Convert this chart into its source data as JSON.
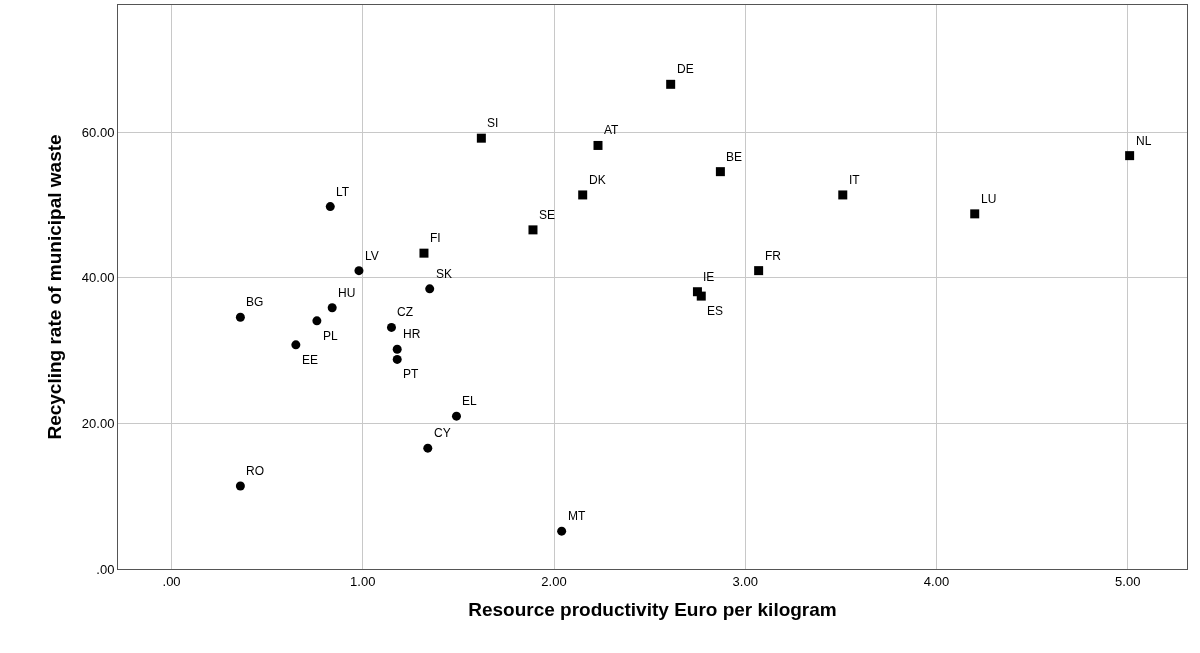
{
  "chart_data": {
    "type": "scatter",
    "xlabel": "Resource productivity Euro per kilogram",
    "ylabel": "Recycling rate of municipal waste",
    "xlim": [
      -0.28,
      5.31
    ],
    "ylim": [
      0,
      77.5
    ],
    "xticks": [
      {
        "value": 0,
        "label": ".00"
      },
      {
        "value": 1,
        "label": "1.00"
      },
      {
        "value": 2,
        "label": "2.00"
      },
      {
        "value": 3,
        "label": "3.00"
      },
      {
        "value": 4,
        "label": "4.00"
      },
      {
        "value": 5,
        "label": "5.00"
      }
    ],
    "yticks": [
      {
        "value": 0,
        "label": ".00"
      },
      {
        "value": 20,
        "label": "20.00"
      },
      {
        "value": 40,
        "label": "40.00"
      },
      {
        "value": 60,
        "label": "60.00"
      }
    ],
    "grid": true,
    "series": [
      {
        "color": "#000000",
        "marker": "square",
        "x": [
          2.61,
          1.62,
          2.23,
          2.87,
          5.01,
          2.15,
          3.51,
          4.2,
          1.89,
          1.32,
          3.07,
          2.75,
          2.77
        ],
        "values": [
          66.6,
          59.2,
          58.2,
          54.6,
          56.8,
          51.4,
          51.4,
          48.8,
          46.6,
          43.4,
          41.0,
          38.1,
          37.5
        ]
      },
      {
        "color": "#000000",
        "marker": "circle",
        "x": [
          0.83,
          0.98,
          1.35,
          0.84,
          0.36,
          0.76,
          1.15,
          0.65,
          1.18,
          1.18,
          1.49,
          1.34,
          0.36,
          2.04
        ],
        "values": [
          49.8,
          41.0,
          38.5,
          35.9,
          34.6,
          34.1,
          33.2,
          30.8,
          30.2,
          28.8,
          21.0,
          16.6,
          11.4,
          5.2
        ]
      }
    ],
    "annotations": [
      {
        "text": "DE",
        "x": 2.61,
        "y": 66.6
      },
      {
        "text": "SI",
        "x": 1.62,
        "y": 59.2
      },
      {
        "text": "AT",
        "x": 2.23,
        "y": 58.2
      },
      {
        "text": "BE",
        "x": 2.87,
        "y": 54.6
      },
      {
        "text": "NL",
        "x": 5.01,
        "y": 56.8
      },
      {
        "text": "DK",
        "x": 2.15,
        "y": 51.4
      },
      {
        "text": "IT",
        "x": 3.51,
        "y": 51.4
      },
      {
        "text": "LU",
        "x": 4.2,
        "y": 48.8
      },
      {
        "text": "SE",
        "x": 1.89,
        "y": 46.6
      },
      {
        "text": "FI",
        "x": 1.32,
        "y": 43.4
      },
      {
        "text": "FR",
        "x": 3.07,
        "y": 41.0
      },
      {
        "text": "IE",
        "x": 2.75,
        "y": 38.1
      },
      {
        "text": "ES",
        "x": 2.77,
        "y": 37.5
      },
      {
        "text": "LT",
        "x": 0.83,
        "y": 49.8
      },
      {
        "text": "LV",
        "x": 0.98,
        "y": 41.0
      },
      {
        "text": "SK",
        "x": 1.35,
        "y": 38.5
      },
      {
        "text": "HU",
        "x": 0.84,
        "y": 35.9
      },
      {
        "text": "BG",
        "x": 0.36,
        "y": 34.6
      },
      {
        "text": "PL",
        "x": 0.76,
        "y": 34.1
      },
      {
        "text": "CZ",
        "x": 1.15,
        "y": 33.2
      },
      {
        "text": "EE",
        "x": 0.65,
        "y": 30.8
      },
      {
        "text": "HR",
        "x": 1.18,
        "y": 30.2
      },
      {
        "text": "PT",
        "x": 1.18,
        "y": 28.8
      },
      {
        "text": "EL",
        "x": 1.49,
        "y": 21.0
      },
      {
        "text": "CY",
        "x": 1.34,
        "y": 16.6
      },
      {
        "text": "RO",
        "x": 0.36,
        "y": 11.4
      },
      {
        "text": "MT",
        "x": 2.04,
        "y": 5.2
      }
    ]
  }
}
